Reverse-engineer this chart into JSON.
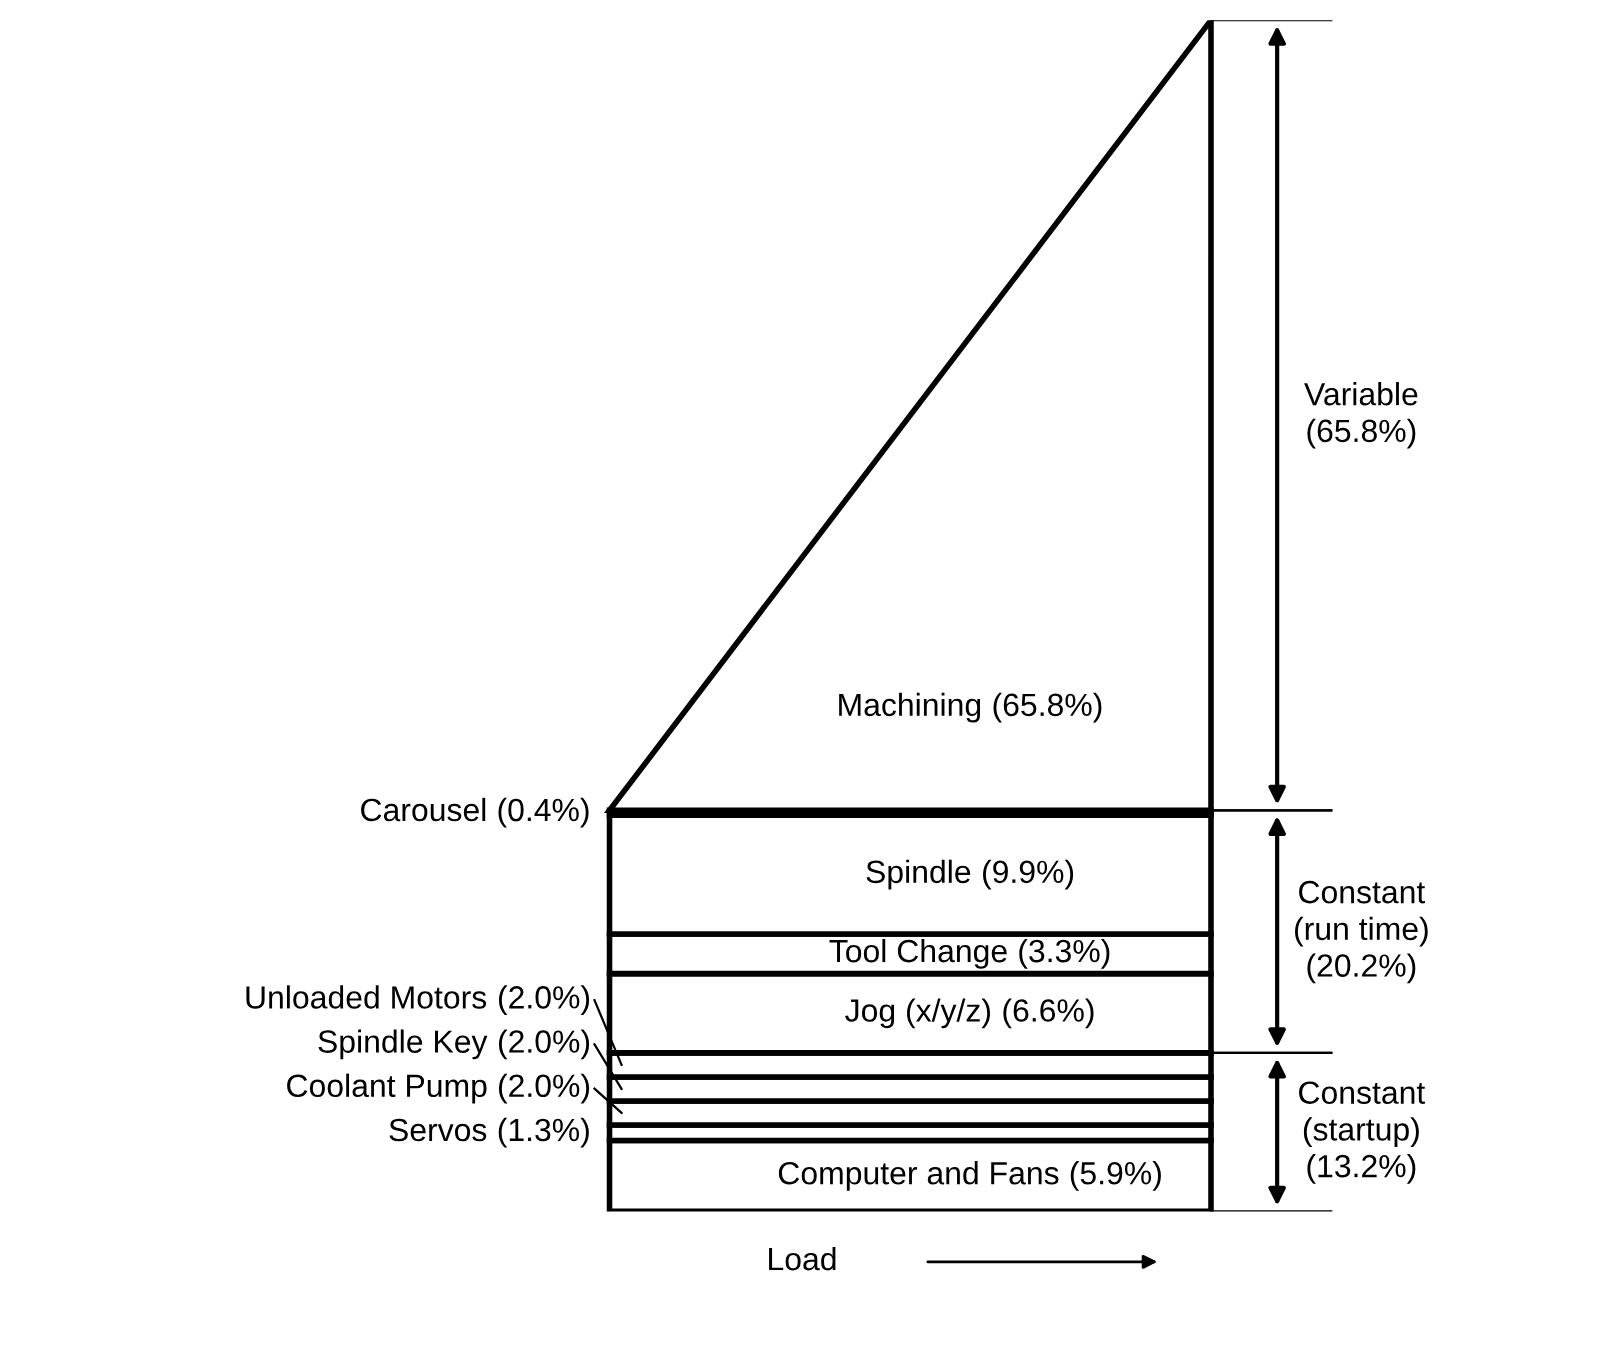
{
  "chart_data": {
    "type": "other",
    "xlabel": "Load",
    "categories": [
      "Computer and Fans",
      "Servos",
      "Coolant Pump",
      "Spindle Key",
      "Unloaded Motors",
      "Jog (x/y/z)",
      "Tool Change",
      "Spindle",
      "Carousel",
      "Machining"
    ],
    "series": [
      {
        "values": [
          5.9,
          1.3,
          2.0,
          2.0,
          2.0,
          6.6,
          3.3,
          9.9,
          0.4,
          65.8
        ],
        "value_labels": [
          "(5.9%)",
          "(1.3%)",
          "(2.0%)",
          "(2.0%)",
          "(2.0%)",
          "(6.6%)",
          "(3.3%)",
          "(9.9%)",
          "(0.4%)",
          "(65.8%)"
        ]
      },
      {
        "values": [
          null,
          13.2,
          null,
          null,
          null,
          null,
          20.2,
          null,
          null,
          65.8
        ],
        "value_labels": [
          null,
          "Constant\n(startup)\n(13.2%)",
          null,
          null,
          null,
          null,
          "Constant\n(run time)\n(20.2%)",
          null,
          null,
          "Variable\n(65.8%)"
        ]
      }
    ]
  }
}
